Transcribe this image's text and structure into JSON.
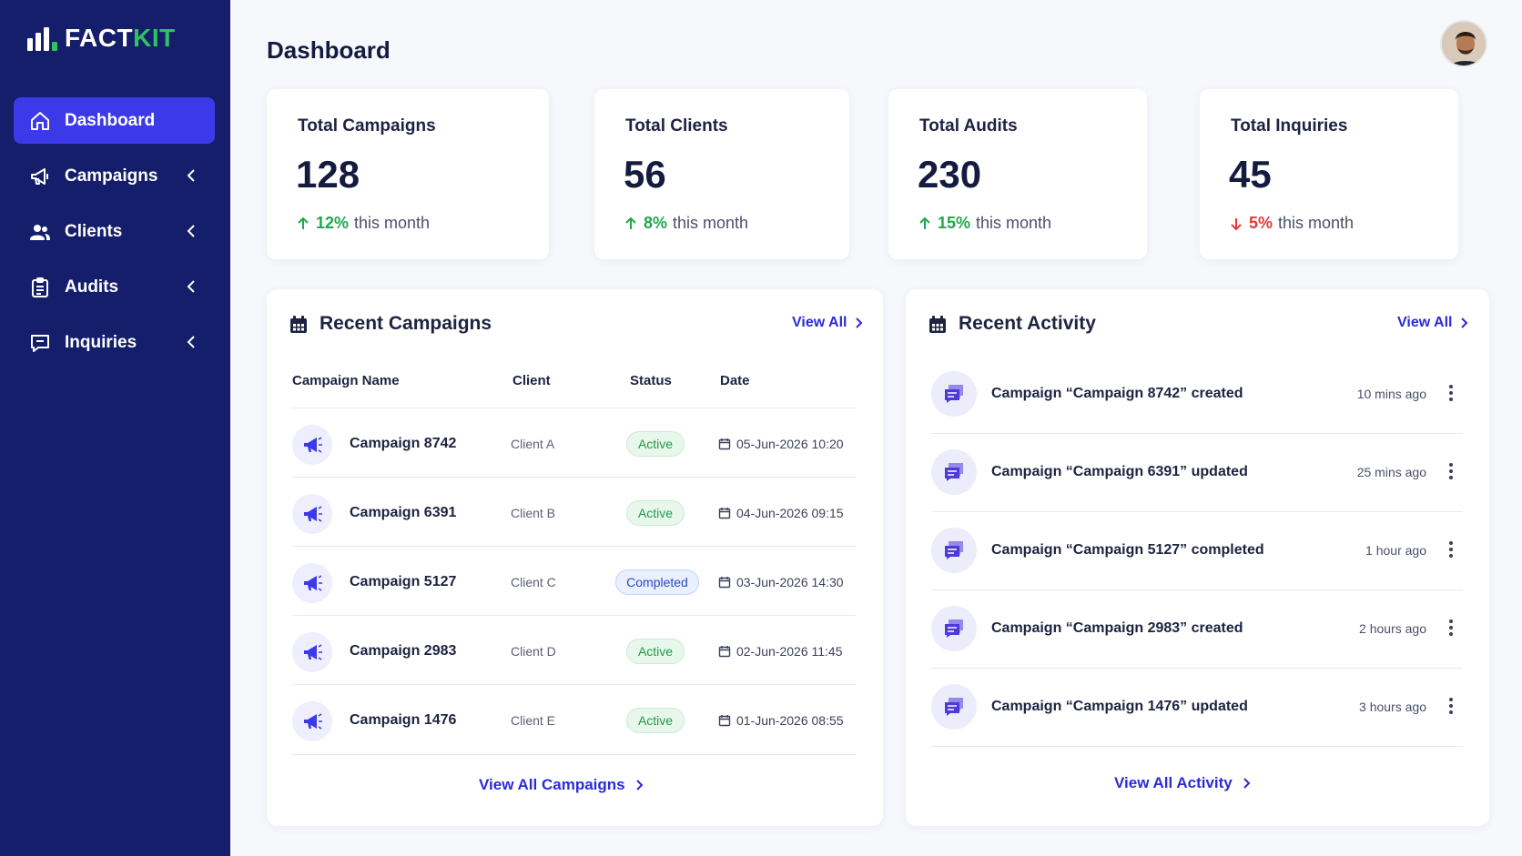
{
  "brand": {
    "name_part1": "FACT",
    "name_part2": "KIT"
  },
  "sidebar": {
    "items": [
      {
        "label": "Dashboard",
        "icon": "home-icon",
        "active": true
      },
      {
        "label": "Campaigns",
        "icon": "megaphone-icon"
      },
      {
        "label": "Clients",
        "icon": "users-icon"
      },
      {
        "label": "Audits",
        "icon": "clipboard-icon"
      },
      {
        "label": "Inquiries",
        "icon": "chat-icon"
      }
    ]
  },
  "header": {
    "title": "Dashboard"
  },
  "stats": [
    {
      "title": "Total Campaigns",
      "value": "128",
      "change": "12%",
      "suffix": "this month",
      "trend": "up"
    },
    {
      "title": "Total Clients",
      "value": "56",
      "change": "8%",
      "suffix": "this month",
      "trend": "up"
    },
    {
      "title": "Total Audits",
      "value": "230",
      "change": "15%",
      "suffix": "this month",
      "trend": "up"
    },
    {
      "title": "Total Inquiries",
      "value": "45",
      "change": "5%",
      "suffix": "this month",
      "trend": "down"
    }
  ],
  "recent_campaigns": {
    "title": "Recent Campaigns",
    "view_all": "View All",
    "columns": [
      "Campaign Name",
      "Client",
      "Status",
      "Date"
    ],
    "rows": [
      {
        "name": "Campaign 8742",
        "client": "Client A",
        "status": "Active",
        "date": "05-Jun-2026 10:20"
      },
      {
        "name": "Campaign 6391",
        "client": "Client B",
        "status": "Active",
        "date": "04-Jun-2026 09:15"
      },
      {
        "name": "Campaign 5127",
        "client": "Client C",
        "status": "Completed",
        "date": "03-Jun-2026 14:30"
      },
      {
        "name": "Campaign 2983",
        "client": "Client D",
        "status": "Active",
        "date": "02-Jun-2026 11:45"
      },
      {
        "name": "Campaign 1476",
        "client": "Client E",
        "status": "Active",
        "date": "01-Jun-2026 08:55"
      }
    ],
    "footer_link": "View All Campaigns"
  },
  "recent_activity": {
    "title": "Recent Activity",
    "view_all": "View All",
    "items": [
      {
        "text": "Campaign “Campaign 8742” created",
        "time": "10 mins ago"
      },
      {
        "text": "Campaign “Campaign 6391” updated",
        "time": "25 mins ago"
      },
      {
        "text": "Campaign “Campaign 5127” completed",
        "time": "1 hour ago"
      },
      {
        "text": "Campaign “Campaign 2983” created",
        "time": "2 hours ago"
      },
      {
        "text": "Campaign “Campaign 1476” updated",
        "time": "3 hours ago"
      }
    ],
    "footer_link": "View All Activity"
  },
  "colors": {
    "sidebar": "#141e6b",
    "accent": "#3c3ae8",
    "green": "#2ec35e",
    "up": "#1fa84a",
    "down": "#e23a3a"
  }
}
